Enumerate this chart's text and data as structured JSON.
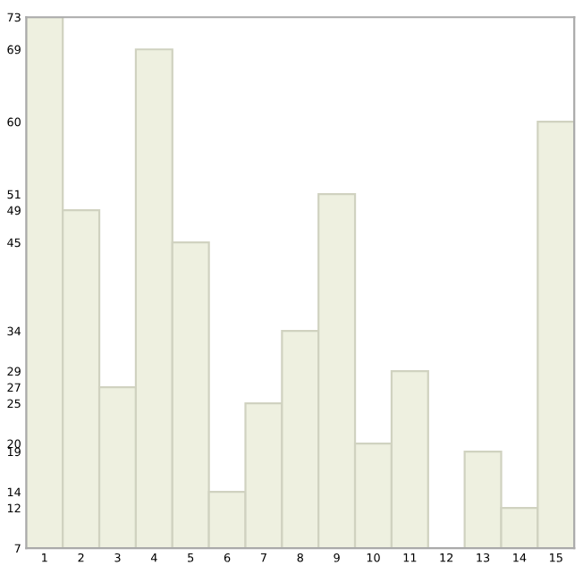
{
  "chart_data": {
    "type": "bar",
    "categories": [
      "1",
      "2",
      "3",
      "4",
      "5",
      "6",
      "7",
      "8",
      "9",
      "10",
      "11",
      "12",
      "13",
      "14",
      "15"
    ],
    "values": [
      73,
      49,
      27,
      69,
      45,
      14,
      25,
      34,
      51,
      20,
      29,
      7,
      19,
      12,
      60
    ],
    "color": "#eef0e0",
    "ylim": [
      7,
      73
    ],
    "yticks": [
      7,
      12,
      14,
      19,
      20,
      25,
      27,
      29,
      34,
      45,
      49,
      51,
      60,
      69,
      73
    ],
    "grid": false,
    "legend": false
  }
}
